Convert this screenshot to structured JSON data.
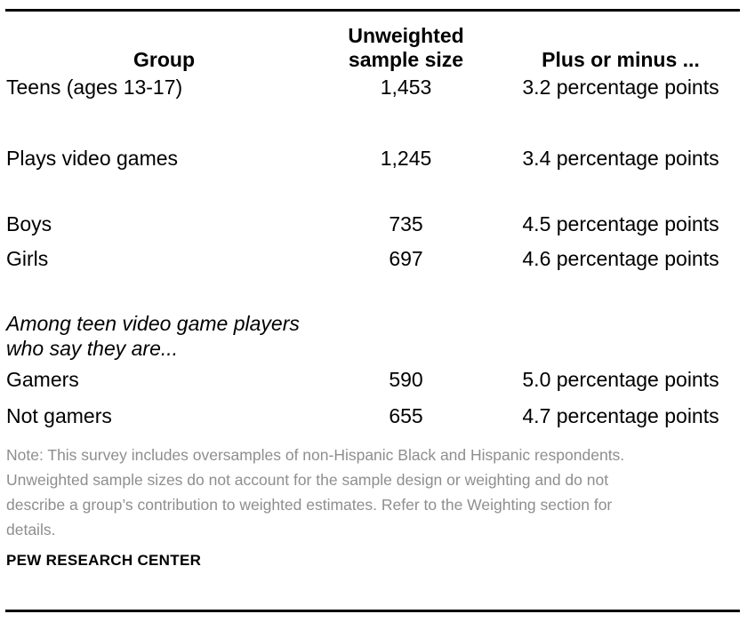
{
  "colors": {
    "background": "#ffffff",
    "text": "#000000",
    "note_text": "#8e8e8e",
    "rule": "#000000"
  },
  "table": {
    "columns": {
      "group": "Group",
      "sample_size": "Unweighted\nsample size",
      "moe": "Plus or minus ..."
    },
    "rows": [
      {
        "group": "Teens (ages 13-17)",
        "sample_size": "1,453",
        "moe": "3.2 percentage points"
      },
      {
        "group": "Plays video games",
        "sample_size": "1,245",
        "moe": "3.4 percentage points"
      },
      {
        "group": "Boys",
        "sample_size": "735",
        "moe": "4.5 percentage points"
      },
      {
        "group": "Girls",
        "sample_size": "697",
        "moe": "4.6 percentage points"
      },
      {
        "group": "Gamers",
        "sample_size": "590",
        "moe": "5.0 percentage points"
      },
      {
        "group": "Not gamers",
        "sample_size": "655",
        "moe": "4.7 percentage points"
      }
    ],
    "section_label": "Among teen video game players\nwho say they are..."
  },
  "note": "Note: This survey includes oversamples of non-Hispanic Black and Hispanic respondents.\nUnweighted sample sizes do not account for the sample design or weighting and do not\ndescribe a group’s contribution to weighted estimates. Refer to the Weighting section for\ndetails.",
  "source": "PEW RESEARCH CENTER"
}
